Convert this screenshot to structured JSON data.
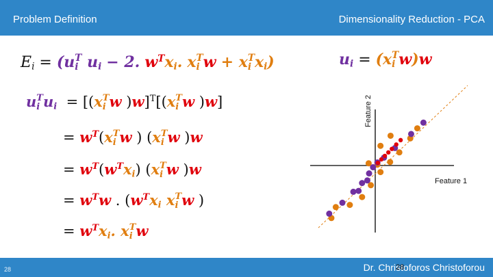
{
  "header": {
    "left_title": "Problem Definition",
    "right_title": "Dimensionality Reduction - PCA"
  },
  "footer": {
    "author": "Dr. Christoforos Christoforou",
    "page_center": "28",
    "page_left": "28"
  },
  "diagram": {
    "xlabel": "Feature 1",
    "ylabel": "Feature 2",
    "colors": {
      "orange": "#e07e10",
      "purple": "#7030a0",
      "red": "#e0000b",
      "accent": "#2f86c8"
    },
    "orange_points": [
      [
        0.55,
        0.3
      ],
      [
        0.8,
        0.62
      ],
      [
        0.96,
        0.85
      ],
      [
        0.35,
        0.68
      ],
      [
        0.12,
        0.45
      ],
      [
        -0.15,
        0.05
      ],
      [
        0.12,
        -0.15
      ],
      [
        -0.3,
        -0.72
      ],
      [
        -0.58,
        -0.9
      ],
      [
        -0.9,
        -0.95
      ],
      [
        -1.0,
        -1.2
      ],
      [
        -0.1,
        -0.45
      ],
      [
        0.34,
        0.08
      ],
      [
        0.05,
        0.02
      ]
    ],
    "purple_points": [
      [
        1.1,
        0.98
      ],
      [
        0.82,
        0.72
      ],
      [
        0.45,
        0.4
      ],
      [
        0.2,
        0.18
      ],
      [
        0.05,
        0.07
      ],
      [
        -0.05,
        -0.04
      ],
      [
        -0.14,
        -0.18
      ],
      [
        -0.18,
        -0.34
      ],
      [
        -0.3,
        -0.4
      ],
      [
        -0.38,
        -0.58
      ],
      [
        -0.5,
        -0.6
      ],
      [
        -0.75,
        -0.85
      ],
      [
        -1.05,
        -1.1
      ]
    ],
    "red_points": [
      [
        0.58,
        0.58
      ],
      [
        0.48,
        0.48
      ],
      [
        0.38,
        0.38
      ],
      [
        0.3,
        0.3
      ],
      [
        0.22,
        0.22
      ],
      [
        0.14,
        0.14
      ],
      [
        0.06,
        0.06
      ]
    ]
  }
}
